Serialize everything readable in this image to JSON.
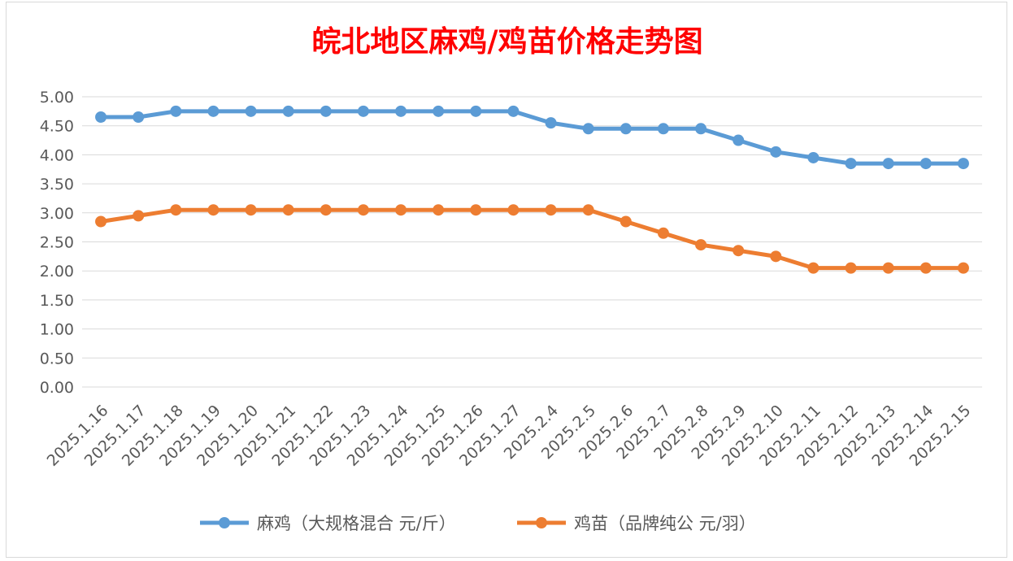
{
  "chart_data": {
    "type": "line",
    "title": "皖北地区麻鸡/鸡苗价格走势图",
    "title_color": "#ff0000",
    "categories": [
      "2025.1.16",
      "2025.1.17",
      "2025.1.18",
      "2025.1.19",
      "2025.1.20",
      "2025.1.21",
      "2025.1.22",
      "2025.1.23",
      "2025.1.24",
      "2025.1.25",
      "2025.1.26",
      "2025.1.27",
      "2025.2.4",
      "2025.2.5",
      "2025.2.6",
      "2025.2.7",
      "2025.2.8",
      "2025.2.9",
      "2025.2.10",
      "2025.2.11",
      "2025.2.12",
      "2025.2.13",
      "2025.2.14",
      "2025.2.15"
    ],
    "series": [
      {
        "name": "麻鸡（大规格混合 元/斤）",
        "color": "#5b9bd5",
        "values": [
          4.65,
          4.65,
          4.75,
          4.75,
          4.75,
          4.75,
          4.75,
          4.75,
          4.75,
          4.75,
          4.75,
          4.75,
          4.55,
          4.45,
          4.45,
          4.45,
          4.45,
          4.25,
          4.05,
          3.95,
          3.85,
          3.85,
          3.85,
          3.85
        ]
      },
      {
        "name": "鸡苗（品牌纯公 元/羽）",
        "color": "#ed7d31",
        "values": [
          2.85,
          2.95,
          3.05,
          3.05,
          3.05,
          3.05,
          3.05,
          3.05,
          3.05,
          3.05,
          3.05,
          3.05,
          3.05,
          3.05,
          2.85,
          2.65,
          2.45,
          2.35,
          2.25,
          2.05,
          2.05,
          2.05,
          2.05,
          2.05
        ]
      }
    ],
    "ylim": [
      0,
      5
    ],
    "y_ticks": [
      "0.00",
      "0.50",
      "1.00",
      "1.50",
      "2.00",
      "2.50",
      "3.00",
      "3.50",
      "4.00",
      "4.50",
      "5.00"
    ],
    "grid": true,
    "legend_position": "bottom"
  }
}
